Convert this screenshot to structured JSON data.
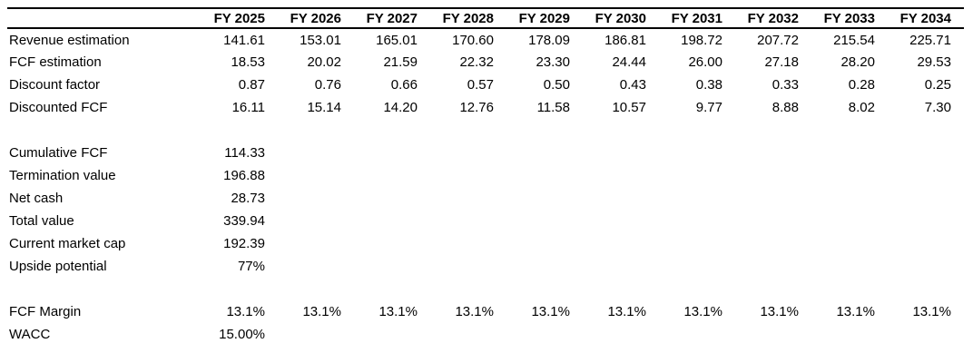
{
  "page": {
    "background_color": "#ffffff",
    "text_color": "#000000",
    "rule_color": "#000000"
  },
  "table": {
    "header": {
      "label_column": "",
      "columns": [
        "FY 2025",
        "FY 2026",
        "FY 2027",
        "FY 2028",
        "FY 2029",
        "FY 2030",
        "FY 2031",
        "FY 2032",
        "FY 2033",
        "FY 2034"
      ]
    },
    "rows": [
      {
        "label": "Revenue estimation",
        "values": [
          "141.61",
          "153.01",
          "165.01",
          "170.60",
          "178.09",
          "186.81",
          "198.72",
          "207.72",
          "215.54",
          "225.71"
        ]
      },
      {
        "label": "FCF estimation",
        "values": [
          "18.53",
          "20.02",
          "21.59",
          "22.32",
          "23.30",
          "24.44",
          "26.00",
          "27.18",
          "28.20",
          "29.53"
        ]
      },
      {
        "label": "Discount factor",
        "values": [
          "0.87",
          "0.76",
          "0.66",
          "0.57",
          "0.50",
          "0.43",
          "0.38",
          "0.33",
          "0.28",
          "0.25"
        ]
      },
      {
        "label": "Discounted FCF",
        "values": [
          "16.11",
          "15.14",
          "14.20",
          "12.76",
          "11.58",
          "10.57",
          "9.77",
          "8.88",
          "8.02",
          "7.30"
        ]
      },
      {
        "label": "",
        "values": [],
        "spacer": true
      },
      {
        "label": "Cumulative FCF",
        "values": [
          "114.33"
        ]
      },
      {
        "label": "Termination value",
        "values": [
          "196.88"
        ]
      },
      {
        "label": "Net cash",
        "values": [
          "28.73"
        ]
      },
      {
        "label": "Total value",
        "values": [
          "339.94"
        ]
      },
      {
        "label": "Current market cap",
        "values": [
          "192.39"
        ]
      },
      {
        "label": "Upside potential",
        "values": [
          "77%"
        ]
      },
      {
        "label": "",
        "values": [],
        "spacer": true
      },
      {
        "label": "FCF Margin",
        "values": [
          "13.1%",
          "13.1%",
          "13.1%",
          "13.1%",
          "13.1%",
          "13.1%",
          "13.1%",
          "13.1%",
          "13.1%",
          "13.1%"
        ]
      },
      {
        "label": "WACC",
        "values": [
          "15.00%"
        ]
      }
    ]
  }
}
